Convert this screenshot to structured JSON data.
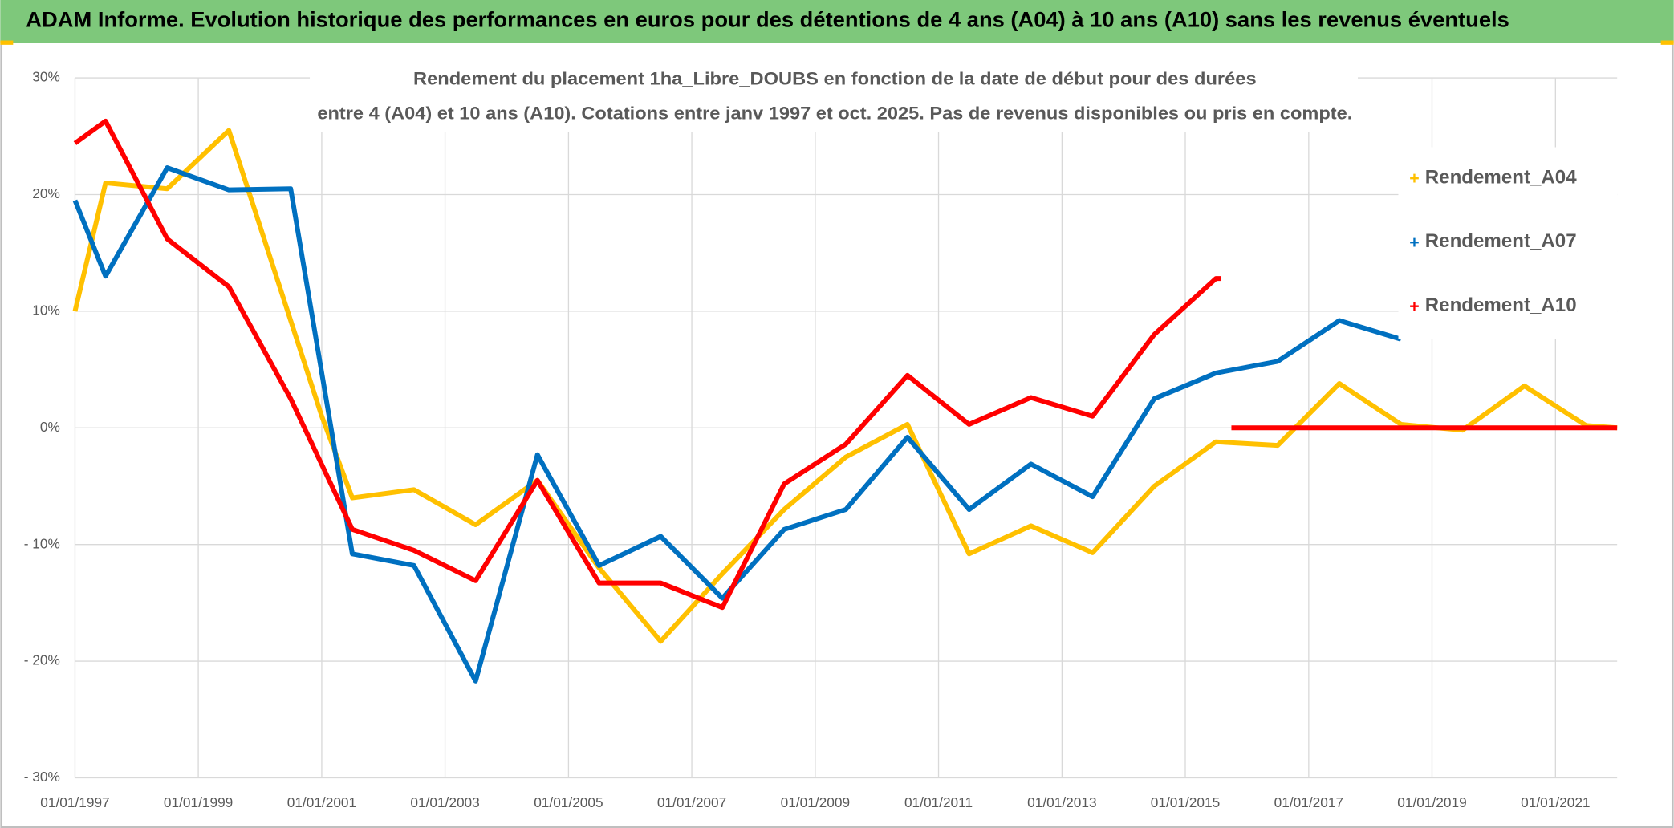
{
  "header": {
    "title": "ADAM Informe. Evolution historique des performances en euros pour des détentions de 4 ans (A04) à 10 ans (A10) sans les revenus éventuels"
  },
  "chart_data": {
    "type": "line",
    "title": [
      "Rendement du placement 1ha_Libre_DOUBS en fonction de la date de début pour des durées",
      "entre 4 (A04) et 10 ans (A10). Cotations entre janv 1997 et oct. 2025. Pas de revenus disponibles ou pris en compte."
    ],
    "xlim": [
      "1997-01-01",
      "2022-01-01"
    ],
    "xticks": [
      {
        "value": "1997-01-01",
        "label": "01/01/1997"
      },
      {
        "value": "1999-01-01",
        "label": "01/01/1999"
      },
      {
        "value": "2001-01-01",
        "label": "01/01/2001"
      },
      {
        "value": "2003-01-01",
        "label": "01/01/2003"
      },
      {
        "value": "2005-01-01",
        "label": "01/01/2005"
      },
      {
        "value": "2007-01-01",
        "label": "01/01/2007"
      },
      {
        "value": "2009-01-01",
        "label": "01/01/2009"
      },
      {
        "value": "2011-01-01",
        "label": "01/01/2011"
      },
      {
        "value": "2013-01-01",
        "label": "01/01/2013"
      },
      {
        "value": "2015-01-01",
        "label": "01/01/2015"
      },
      {
        "value": "2017-01-01",
        "label": "01/01/2017"
      },
      {
        "value": "2019-01-01",
        "label": "01/01/2019"
      },
      {
        "value": "2021-01-01",
        "label": "01/01/2021"
      }
    ],
    "ylim": [
      -30,
      30
    ],
    "yticks": [
      {
        "value": 30,
        "label": "30%"
      },
      {
        "value": 20,
        "label": "20%"
      },
      {
        "value": 10,
        "label": "10%"
      },
      {
        "value": 0,
        "label": "0%"
      },
      {
        "value": -10,
        "label": "- 10%"
      },
      {
        "value": -20,
        "label": "- 20%"
      },
      {
        "value": -30,
        "label": "- 30%"
      }
    ],
    "grid": true,
    "legend": "right",
    "series": [
      {
        "name": "Rendement_A04",
        "color": "#ffc000",
        "x": [
          "1997-01",
          "1997-07",
          "1998-07",
          "1999-07",
          "2001-01",
          "2001-07",
          "2002-07",
          "2003-07",
          "2004-07",
          "2005-07",
          "2006-07",
          "2007-07",
          "2008-07",
          "2009-07",
          "2010-07",
          "2011-07",
          "2012-07",
          "2013-07",
          "2014-07",
          "2015-07",
          "2016-07",
          "2017-07",
          "2018-07",
          "2019-07",
          "2020-07",
          "2021-07",
          "2022-01"
        ],
        "values": [
          10,
          21,
          20.5,
          25.5,
          1,
          -6,
          -5.3,
          -8.3,
          -4.5,
          -12,
          -18.3,
          -12.5,
          -7,
          -2.5,
          0.3,
          -10.8,
          -8.4,
          -10.7,
          -5,
          -1.2,
          -1.5,
          3.8,
          0.3,
          -0.2,
          3.6,
          0.2,
          0
        ]
      },
      {
        "name": "Rendement_A07",
        "color": "#0070c0",
        "x": [
          "1997-01",
          "1997-07",
          "1998-07",
          "1999-07",
          "2000-07",
          "2001-07",
          "2002-07",
          "2003-07",
          "2004-07",
          "2005-07",
          "2006-07",
          "2007-07",
          "2008-07",
          "2009-07",
          "2010-07",
          "2011-07",
          "2012-07",
          "2013-07",
          "2014-07",
          "2015-07",
          "2016-07",
          "2017-07",
          "2018-07"
        ],
        "values": [
          19.5,
          13,
          22.3,
          20.4,
          20.5,
          -10.8,
          -11.8,
          -21.7,
          -2.3,
          -11.8,
          -9.3,
          -14.6,
          -8.7,
          -7,
          -0.8,
          -7,
          -3.1,
          -5.9,
          2.5,
          4.7,
          5.7,
          9.2,
          7.6
        ]
      },
      {
        "name": "Rendement_A10",
        "color": "#ff0000",
        "x": [
          "1997-01",
          "1997-07",
          "1998-07",
          "1999-07",
          "2000-07",
          "2001-07",
          "2002-07",
          "2003-07",
          "2004-07",
          "2005-07",
          "2006-07",
          "2007-07",
          "2008-07",
          "2009-07",
          "2010-07",
          "2011-07",
          "2012-07",
          "2013-07",
          "2014-07",
          "2015-07",
          "2015-08",
          "2015-09",
          "2015-10",
          "2022-01"
        ],
        "values": [
          24.4,
          26.3,
          16.2,
          12.1,
          2.5,
          -8.7,
          -10.5,
          -13.1,
          -4.5,
          -13.3,
          -13.3,
          -15.4,
          -4.8,
          -1.4,
          4.5,
          0.3,
          2.6,
          1,
          8,
          12.8,
          12.8,
          null,
          0,
          0
        ]
      }
    ]
  }
}
